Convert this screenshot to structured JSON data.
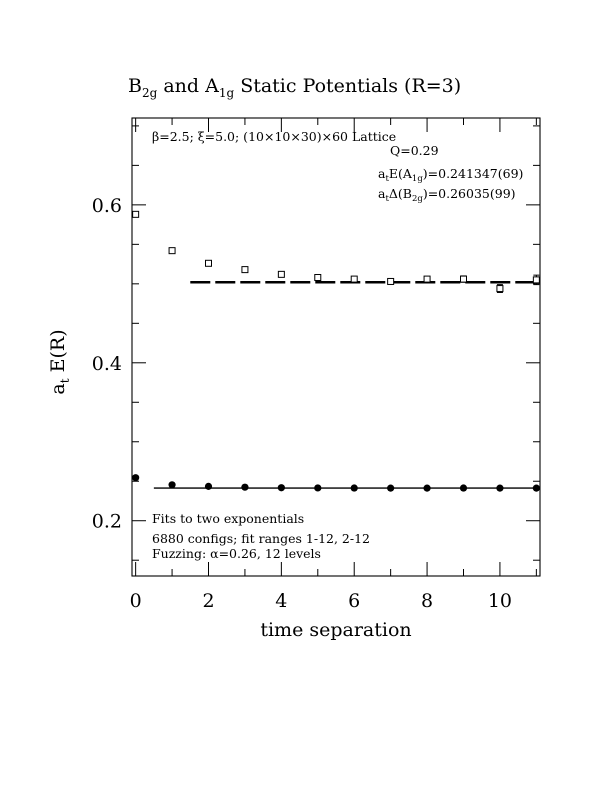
{
  "chart_data": {
    "type": "scatter",
    "title": {
      "main": "B",
      "sub1": "2g",
      "mid": " and A",
      "sub2": "1g",
      "rest": " Static Potentials (R=3)"
    },
    "xlabel": "time separation",
    "ylabel": {
      "pre": "a",
      "sub": "t",
      "post": " E(R)"
    },
    "xlim": [
      -0.1,
      11.1
    ],
    "ylim": [
      0.13,
      0.71
    ],
    "x_ticks": [
      0,
      2,
      4,
      6,
      8,
      10
    ],
    "x_tick_labels": [
      "0",
      "2",
      "4",
      "6",
      "8",
      "10"
    ],
    "y_ticks": [
      0.2,
      0.4,
      0.6
    ],
    "y_tick_labels": [
      "0.2",
      "0.4",
      "0.6"
    ],
    "annotations": {
      "lattice": "β=2.5; ξ=5.0; (10×10×30)×60 Lattice",
      "q": "Q=0.29",
      "a1g": {
        "pre": "a",
        "s1": "t",
        "mid": "E(A",
        "s2": "1g",
        "post": ")=0.241347(69)"
      },
      "b2g": {
        "pre": "a",
        "s1": "t",
        "mid": "Δ(B",
        "s2": "2g",
        "post": ")=0.26035(99)"
      },
      "fits": "Fits to two exponentials",
      "configs": "6880 configs; fit ranges 1-12, 2-12",
      "fuzzing": "Fuzzing: α=0.26, 12 levels"
    },
    "series": [
      {
        "marker": "open-square",
        "x": [
          0,
          1,
          2,
          3,
          4,
          5,
          6,
          7,
          8,
          9,
          10,
          11
        ],
        "y": [
          0.588,
          0.542,
          0.526,
          0.518,
          0.512,
          0.508,
          0.506,
          0.503,
          0.506,
          0.506,
          0.494,
          0.505
        ],
        "err": [
          0.002,
          0.002,
          0.002,
          0.002,
          0.003,
          0.003,
          0.003,
          0.003,
          0.003,
          0.004,
          0.005,
          0.006
        ],
        "fit": {
          "y": 0.502,
          "x_range": [
            1.5,
            11
          ]
        }
      },
      {
        "marker": "filled-circle",
        "x": [
          0,
          1,
          2,
          3,
          4,
          5,
          6,
          7,
          8,
          9,
          10,
          11
        ],
        "y": [
          0.2545,
          0.2455,
          0.2435,
          0.2425,
          0.2418,
          0.2415,
          0.2414,
          0.2413,
          0.2413,
          0.2414,
          0.2413,
          0.2413
        ],
        "fit": {
          "y": 0.2413,
          "x_range": [
            0.5,
            11
          ]
        }
      }
    ]
  }
}
